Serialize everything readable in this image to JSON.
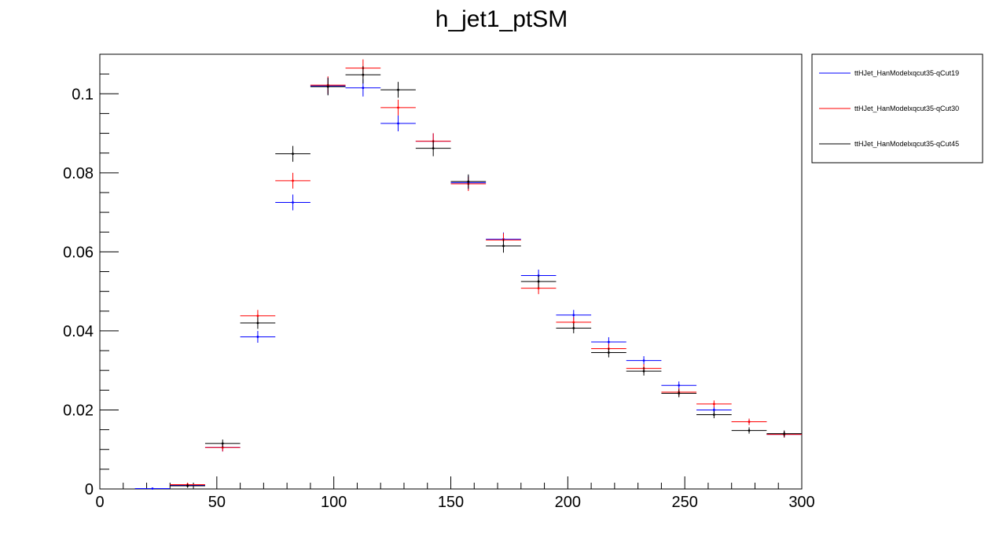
{
  "chart_data": {
    "type": "scatter",
    "title": "h_jet1_ptSM",
    "xlabel": "",
    "ylabel": "",
    "xlim": [
      0,
      300
    ],
    "ylim": [
      0,
      0.11
    ],
    "grid": false,
    "legend_position": "right",
    "bin_edges": [
      15,
      30,
      45,
      60,
      75,
      90,
      105,
      120,
      135,
      150,
      165,
      180,
      195,
      210,
      225,
      240,
      255,
      270,
      285,
      300
    ],
    "x_ticks": [
      0,
      50,
      100,
      150,
      200,
      250,
      300
    ],
    "x_tick_labels": [
      "0",
      "50",
      "100",
      "150",
      "200",
      "250",
      "300"
    ],
    "y_ticks": [
      0,
      0.02,
      0.04,
      0.06,
      0.08,
      0.1
    ],
    "y_tick_labels": [
      "0",
      "0.02",
      "0.04",
      "0.06",
      "0.08",
      "0.1"
    ],
    "series": [
      {
        "name": "ttHJet_HanModelxqcut35-qCut19",
        "color": "#0000ff",
        "values": [
          0.0001,
          0.0009,
          0.0105,
          0.0385,
          0.0725,
          0.102,
          0.1015,
          0.0925,
          0.088,
          0.0775,
          0.0632,
          0.054,
          0.044,
          0.0372,
          0.0325,
          0.0262,
          0.02,
          0.017,
          0.0138
        ],
        "errors": [
          0.0002,
          0.0005,
          0.001,
          0.0015,
          0.002,
          0.0022,
          0.0022,
          0.002,
          0.002,
          0.0018,
          0.0017,
          0.0015,
          0.0013,
          0.0012,
          0.0011,
          0.001,
          0.0009,
          0.0008,
          0.0008
        ]
      },
      {
        "name": "ttHJet_HanModelxqcut35-qCut30",
        "color": "#ff0000",
        "values": [
          0.0,
          0.0011,
          0.0105,
          0.0438,
          0.078,
          0.1022,
          0.1065,
          0.0965,
          0.088,
          0.0772,
          0.063,
          0.0508,
          0.0422,
          0.0355,
          0.0305,
          0.0245,
          0.0215,
          0.017,
          0.0138
        ],
        "errors": [
          0.0,
          0.0005,
          0.001,
          0.0015,
          0.002,
          0.0022,
          0.0022,
          0.002,
          0.002,
          0.0018,
          0.0017,
          0.0015,
          0.0013,
          0.0012,
          0.0011,
          0.001,
          0.0009,
          0.0008,
          0.0008
        ]
      },
      {
        "name": "ttHJet_HanModelxqcut35-qCut45",
        "color": "#000000",
        "values": [
          0.0,
          0.0008,
          0.0115,
          0.042,
          0.0848,
          0.1018,
          0.1048,
          0.101,
          0.0862,
          0.0778,
          0.0615,
          0.0525,
          0.0407,
          0.0345,
          0.0298,
          0.0242,
          0.0188,
          0.0148,
          0.014
        ],
        "errors": [
          0.0,
          0.0005,
          0.001,
          0.0015,
          0.002,
          0.0022,
          0.0022,
          0.002,
          0.002,
          0.0018,
          0.0017,
          0.0015,
          0.0013,
          0.0012,
          0.0011,
          0.001,
          0.0009,
          0.0008,
          0.0008
        ]
      }
    ]
  }
}
